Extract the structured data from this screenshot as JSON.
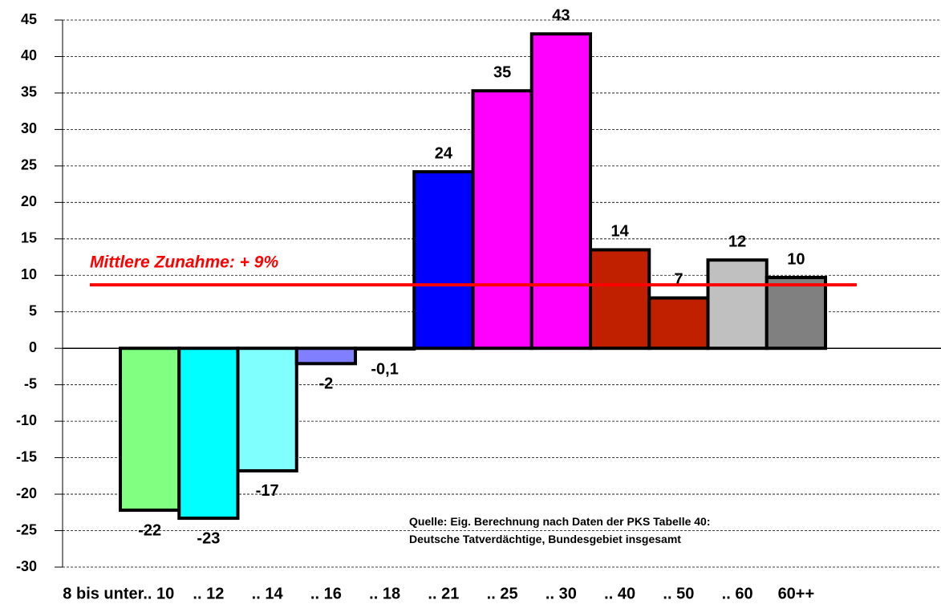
{
  "chart_data": {
    "type": "bar",
    "categories": [
      "8 bis unter.. 10",
      ".. 12",
      ".. 14",
      ".. 16",
      ".. 18",
      ".. 21",
      ".. 25",
      ".. 30",
      ".. 40",
      ".. 50",
      ".. 60",
      "60++"
    ],
    "values": [
      -22.2,
      -23.3,
      -16.8,
      -2.1,
      -0.1,
      24.2,
      35.3,
      43.1,
      13.5,
      6.9,
      12.1,
      9.7
    ],
    "value_labels": [
      "-22",
      "-23",
      "-17",
      "-2",
      "-0,1",
      "24",
      "35",
      "43",
      "14",
      "7",
      "12",
      "10"
    ],
    "colors": [
      "#80ff80",
      "#00ffff",
      "#80ffff",
      "#8080ff",
      "#000080",
      "#0000ff",
      "#ff00ff",
      "#ff00ff",
      "#c02000",
      "#c02000",
      "#c0c0c0",
      "#808080"
    ],
    "ylim": [
      -30,
      45
    ],
    "yticks": [
      -30,
      -25,
      -20,
      -15,
      -10,
      -5,
      0,
      5,
      10,
      15,
      20,
      25,
      30,
      35,
      40,
      45
    ],
    "grid": true,
    "reference_line": {
      "value": 8.7,
      "label": "Mittlere Zunahme: + 9%",
      "color": "#ff0000"
    },
    "source": [
      "Quelle: Eig. Berechnung nach Daten der PKS Tabelle 40:",
      "Deutsche Tatverdächtige,  Bundesgebiet insgesamt"
    ]
  }
}
